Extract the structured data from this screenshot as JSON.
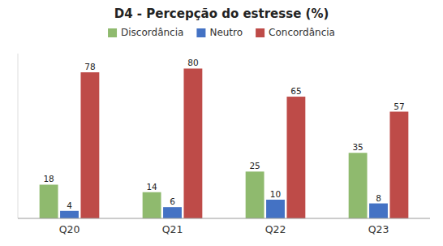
{
  "chart_data": {
    "type": "bar",
    "title": "D4 - Percepção do estresse (%)",
    "categories": [
      "Q20",
      "Q21",
      "Q22",
      "Q23"
    ],
    "series": [
      {
        "name": "Discordância",
        "color": "#8fba6e",
        "values": [
          18,
          14,
          25,
          35
        ]
      },
      {
        "name": "Neutro",
        "color": "#4472c4",
        "values": [
          4,
          6,
          10,
          8
        ]
      },
      {
        "name": "Concordância",
        "color": "#be4b48",
        "values": [
          78,
          80,
          65,
          57
        ]
      }
    ],
    "ylim": [
      0,
      88
    ],
    "yticks": [],
    "grid": false,
    "legend": "top",
    "data_labels": true,
    "tick_labels": "x"
  }
}
